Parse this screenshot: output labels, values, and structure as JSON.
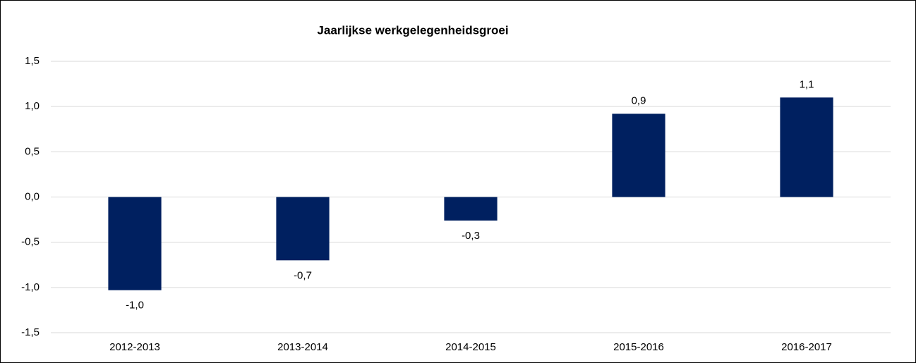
{
  "chart_data": {
    "type": "bar",
    "title": "Jaarlijkse werkgelegenheidsgroei",
    "categories": [
      "2012-2013",
      "2013-2014",
      "2014-2015",
      "2015-2016",
      "2016-2017"
    ],
    "values": [
      -1.03,
      -0.7,
      -0.26,
      0.92,
      1.1
    ],
    "value_labels": [
      "-1,0",
      "-0,7",
      "-0,3",
      "0,9",
      "1,1"
    ],
    "color": "#002060",
    "ylim": [
      -1.5,
      1.5
    ],
    "yticks": [
      {
        "value": -1.5,
        "label": "-1,5"
      },
      {
        "value": -1.0,
        "label": "-1,0"
      },
      {
        "value": -0.5,
        "label": "-0,5"
      },
      {
        "value": 0,
        "label": "0,0"
      },
      {
        "value": 0.5,
        "label": "0,5"
      },
      {
        "value": 1.0,
        "label": "1,0"
      },
      {
        "value": 1.5,
        "label": "1,5"
      }
    ],
    "grid": true
  }
}
